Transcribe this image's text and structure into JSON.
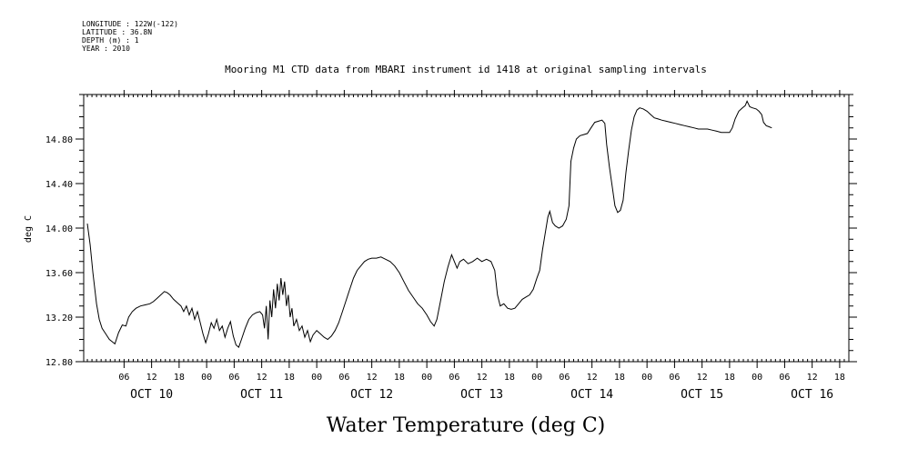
{
  "metadata": {
    "longitude": "LONGITUDE : 122W(-122)",
    "latitude": "LATITUDE : 36.8N",
    "depth": "DEPTH (m) : 1",
    "year": "YEAR : 2010"
  },
  "chart_data": {
    "type": "line",
    "title": "Mooring M1 CTD data from MBARI instrument id 1418 at original sampling intervals",
    "xlabel": "Water Temperature (deg C)",
    "ylabel": "deg C",
    "ylim": [
      12.8,
      15.2
    ],
    "yticks": [
      12.8,
      13.2,
      13.6,
      14.0,
      14.4,
      14.8
    ],
    "ytick_labels": [
      "12.80",
      "13.20",
      "13.60",
      "14.00",
      "14.40",
      "14.80"
    ],
    "xlim_hours": [
      -2.8,
      164
    ],
    "xticks_hours": [
      6,
      12,
      18,
      24,
      30,
      36,
      42,
      48,
      54,
      60,
      66,
      72,
      78,
      84,
      90,
      96,
      102,
      108,
      114,
      120,
      126,
      132,
      138,
      144,
      150,
      156,
      162
    ],
    "xtick_labels": [
      "06",
      "12",
      "18",
      "00",
      "06",
      "12",
      "18",
      "00",
      "06",
      "12",
      "18",
      "00",
      "06",
      "12",
      "18",
      "00",
      "06",
      "12",
      "18",
      "00",
      "06",
      "12",
      "18",
      "00",
      "06",
      "12",
      "18"
    ],
    "day_labels": [
      {
        "label": "OCT 10",
        "hour": 12
      },
      {
        "label": "OCT 11",
        "hour": 36
      },
      {
        "label": "OCT 12",
        "hour": 60
      },
      {
        "label": "OCT 13",
        "hour": 84
      },
      {
        "label": "OCT 14",
        "hour": 108
      },
      {
        "label": "OCT 15",
        "hour": 132
      },
      {
        "label": "OCT 16",
        "hour": 156
      }
    ],
    "grid": false,
    "series": [
      {
        "points": [
          [
            -2.0,
            14.04
          ],
          [
            -1.4,
            13.85
          ],
          [
            -0.8,
            13.6
          ],
          [
            0.0,
            13.32
          ],
          [
            0.6,
            13.18
          ],
          [
            1.2,
            13.1
          ],
          [
            2.0,
            13.05
          ],
          [
            2.8,
            13.0
          ],
          [
            3.4,
            12.98
          ],
          [
            4.0,
            12.96
          ],
          [
            4.8,
            13.06
          ],
          [
            5.6,
            13.13
          ],
          [
            6.4,
            13.12
          ],
          [
            7.0,
            13.2
          ],
          [
            7.8,
            13.25
          ],
          [
            8.6,
            13.28
          ],
          [
            9.6,
            13.3
          ],
          [
            10.6,
            13.31
          ],
          [
            11.6,
            13.32
          ],
          [
            12.4,
            13.34
          ],
          [
            13.2,
            13.37
          ],
          [
            14.0,
            13.4
          ],
          [
            14.8,
            13.43
          ],
          [
            15.4,
            13.42
          ],
          [
            16.0,
            13.4
          ],
          [
            16.8,
            13.36
          ],
          [
            17.6,
            13.33
          ],
          [
            18.4,
            13.3
          ],
          [
            19.0,
            13.25
          ],
          [
            19.6,
            13.3
          ],
          [
            20.2,
            13.22
          ],
          [
            20.8,
            13.28
          ],
          [
            21.4,
            13.18
          ],
          [
            22.0,
            13.25
          ],
          [
            22.6,
            13.15
          ],
          [
            23.2,
            13.05
          ],
          [
            23.8,
            12.97
          ],
          [
            24.4,
            13.05
          ],
          [
            25.0,
            13.15
          ],
          [
            25.6,
            13.1
          ],
          [
            26.2,
            13.18
          ],
          [
            26.8,
            13.08
          ],
          [
            27.4,
            13.12
          ],
          [
            28.0,
            13.02
          ],
          [
            28.6,
            13.1
          ],
          [
            29.2,
            13.16
          ],
          [
            29.8,
            13.03
          ],
          [
            30.4,
            12.95
          ],
          [
            31.0,
            12.93
          ],
          [
            31.6,
            13.0
          ],
          [
            32.4,
            13.1
          ],
          [
            33.2,
            13.18
          ],
          [
            34.0,
            13.22
          ],
          [
            34.8,
            13.24
          ],
          [
            35.6,
            13.25
          ],
          [
            36.2,
            13.22
          ],
          [
            36.6,
            13.1
          ],
          [
            37.0,
            13.3
          ],
          [
            37.4,
            13.0
          ],
          [
            37.8,
            13.35
          ],
          [
            38.2,
            13.2
          ],
          [
            38.6,
            13.45
          ],
          [
            39.0,
            13.28
          ],
          [
            39.4,
            13.5
          ],
          [
            39.8,
            13.35
          ],
          [
            40.2,
            13.55
          ],
          [
            40.6,
            13.4
          ],
          [
            41.0,
            13.52
          ],
          [
            41.4,
            13.3
          ],
          [
            41.8,
            13.4
          ],
          [
            42.2,
            13.2
          ],
          [
            42.6,
            13.28
          ],
          [
            43.0,
            13.12
          ],
          [
            43.6,
            13.18
          ],
          [
            44.2,
            13.08
          ],
          [
            44.8,
            13.12
          ],
          [
            45.4,
            13.02
          ],
          [
            46.0,
            13.08
          ],
          [
            46.6,
            12.98
          ],
          [
            47.2,
            13.04
          ],
          [
            48.0,
            13.08
          ],
          [
            48.8,
            13.05
          ],
          [
            49.6,
            13.02
          ],
          [
            50.4,
            13.0
          ],
          [
            51.2,
            13.03
          ],
          [
            52.0,
            13.08
          ],
          [
            52.8,
            13.15
          ],
          [
            53.6,
            13.25
          ],
          [
            54.4,
            13.35
          ],
          [
            55.2,
            13.45
          ],
          [
            56.0,
            13.55
          ],
          [
            56.8,
            13.62
          ],
          [
            57.6,
            13.66
          ],
          [
            58.4,
            13.7
          ],
          [
            59.2,
            13.72
          ],
          [
            60.0,
            13.73
          ],
          [
            61.0,
            13.73
          ],
          [
            62.0,
            13.74
          ],
          [
            63.0,
            13.72
          ],
          [
            64.0,
            13.7
          ],
          [
            65.0,
            13.66
          ],
          [
            66.0,
            13.6
          ],
          [
            67.0,
            13.52
          ],
          [
            68.0,
            13.44
          ],
          [
            69.0,
            13.38
          ],
          [
            70.0,
            13.32
          ],
          [
            71.0,
            13.28
          ],
          [
            72.0,
            13.22
          ],
          [
            72.8,
            13.16
          ],
          [
            73.6,
            13.12
          ],
          [
            74.2,
            13.18
          ],
          [
            75.0,
            13.35
          ],
          [
            75.8,
            13.52
          ],
          [
            76.6,
            13.65
          ],
          [
            77.4,
            13.76
          ],
          [
            78.0,
            13.7
          ],
          [
            78.6,
            13.64
          ],
          [
            79.2,
            13.7
          ],
          [
            80.0,
            13.72
          ],
          [
            81.0,
            13.68
          ],
          [
            82.0,
            13.7
          ],
          [
            83.0,
            13.73
          ],
          [
            84.0,
            13.7
          ],
          [
            85.0,
            13.72
          ],
          [
            86.0,
            13.7
          ],
          [
            86.8,
            13.62
          ],
          [
            87.4,
            13.4
          ],
          [
            88.0,
            13.3
          ],
          [
            88.8,
            13.32
          ],
          [
            89.6,
            13.28
          ],
          [
            90.4,
            13.27
          ],
          [
            91.2,
            13.28
          ],
          [
            92.0,
            13.32
          ],
          [
            92.8,
            13.36
          ],
          [
            93.6,
            13.38
          ],
          [
            94.4,
            13.4
          ],
          [
            95.2,
            13.45
          ],
          [
            96.0,
            13.55
          ],
          [
            96.6,
            13.62
          ],
          [
            97.2,
            13.8
          ],
          [
            97.8,
            13.95
          ],
          [
            98.4,
            14.1
          ],
          [
            98.8,
            14.15
          ],
          [
            99.4,
            14.05
          ],
          [
            100.0,
            14.02
          ],
          [
            100.8,
            14.0
          ],
          [
            101.6,
            14.02
          ],
          [
            102.4,
            14.08
          ],
          [
            103.0,
            14.2
          ],
          [
            103.4,
            14.6
          ],
          [
            104.0,
            14.72
          ],
          [
            104.6,
            14.8
          ],
          [
            105.4,
            14.83
          ],
          [
            106.2,
            14.84
          ],
          [
            107.0,
            14.85
          ],
          [
            107.8,
            14.9
          ],
          [
            108.6,
            14.95
          ],
          [
            109.4,
            14.96
          ],
          [
            110.2,
            14.97
          ],
          [
            110.8,
            14.94
          ],
          [
            111.2,
            14.75
          ],
          [
            111.8,
            14.55
          ],
          [
            112.4,
            14.38
          ],
          [
            113.0,
            14.2
          ],
          [
            113.6,
            14.14
          ],
          [
            114.2,
            14.16
          ],
          [
            114.8,
            14.25
          ],
          [
            115.4,
            14.5
          ],
          [
            116.0,
            14.7
          ],
          [
            116.6,
            14.88
          ],
          [
            117.2,
            15.0
          ],
          [
            117.8,
            15.06
          ],
          [
            118.4,
            15.08
          ],
          [
            119.2,
            15.07
          ],
          [
            120.0,
            15.05
          ],
          [
            120.8,
            15.02
          ],
          [
            121.6,
            14.99
          ],
          [
            122.4,
            14.98
          ],
          [
            123.2,
            14.97
          ],
          [
            124.2,
            14.96
          ],
          [
            125.2,
            14.95
          ],
          [
            126.2,
            14.94
          ],
          [
            127.2,
            14.93
          ],
          [
            128.2,
            14.92
          ],
          [
            129.2,
            14.91
          ],
          [
            130.2,
            14.9
          ],
          [
            131.2,
            14.89
          ],
          [
            132.2,
            14.89
          ],
          [
            133.2,
            14.89
          ],
          [
            134.2,
            14.88
          ],
          [
            135.2,
            14.87
          ],
          [
            136.2,
            14.86
          ],
          [
            137.2,
            14.86
          ],
          [
            138.0,
            14.86
          ],
          [
            138.6,
            14.9
          ],
          [
            139.2,
            14.98
          ],
          [
            140.0,
            15.05
          ],
          [
            140.8,
            15.08
          ],
          [
            141.4,
            15.1
          ],
          [
            141.8,
            15.14
          ],
          [
            142.4,
            15.09
          ],
          [
            143.0,
            15.08
          ],
          [
            143.8,
            15.07
          ],
          [
            144.4,
            15.05
          ],
          [
            145.0,
            15.02
          ],
          [
            145.4,
            14.95
          ],
          [
            146.0,
            14.92
          ],
          [
            146.6,
            14.91
          ],
          [
            147.2,
            14.9
          ]
        ]
      }
    ]
  }
}
